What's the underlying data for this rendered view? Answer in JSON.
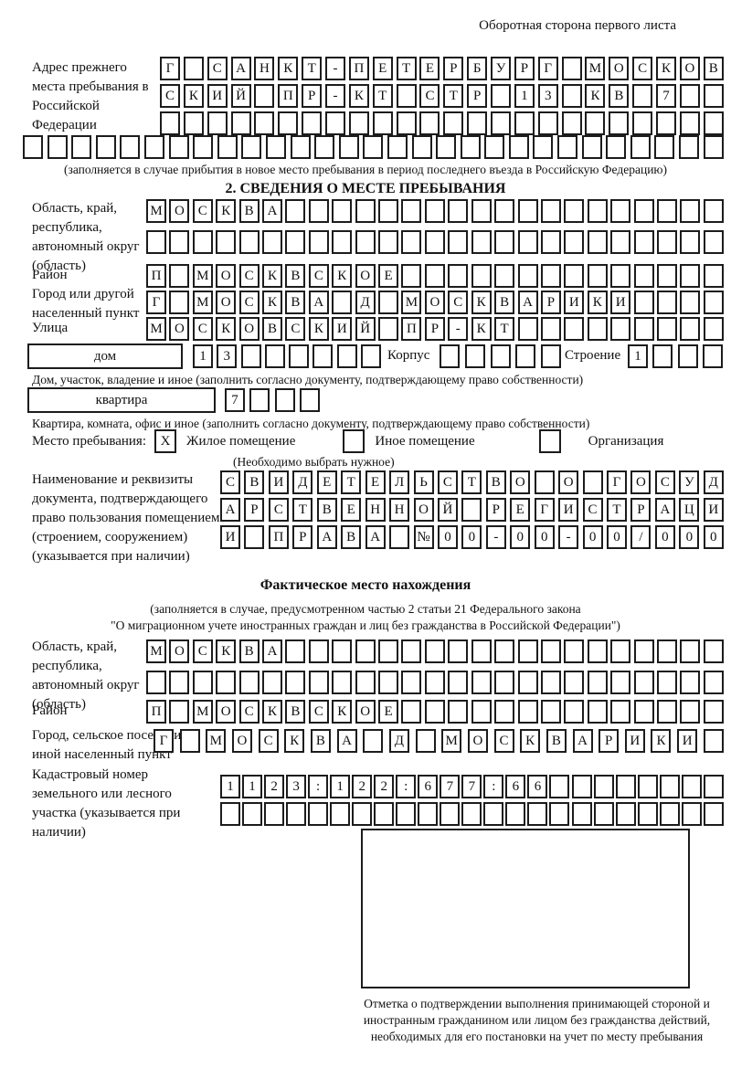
{
  "header": {
    "corner_note": "Оборотная сторона первого листа"
  },
  "prev_address": {
    "label": "Адрес прежнего места пребывания в Российской Федерации",
    "rows": [
      {
        "text": "Г САНКТ-ПЕТЕРБУРГ МОСКОВ",
        "count": 24
      },
      {
        "text": "СКИЙ ПР-КТ СТР 13 КВ 7",
        "count": 24
      },
      {
        "text": "",
        "count": 24
      },
      {
        "text": "",
        "count": 29
      }
    ],
    "note": "(заполняется в случае прибытия в новое место пребывания в период последнего въезда в Российскую Федерацию)"
  },
  "section2": {
    "title": "2. СВЕДЕНИЯ О МЕСТЕ ПРЕБЫВАНИЯ",
    "region": {
      "label": "Область, край, республика, автономный округ (область)",
      "rows": [
        {
          "text": "МОСКВА",
          "count": 25
        },
        {
          "text": "",
          "count": 25
        }
      ]
    },
    "district": {
      "label": "Район",
      "row": {
        "text": "П МОСКВСКОЕ",
        "count": 25
      }
    },
    "city": {
      "label": "Город или другой населенный пункт",
      "row": {
        "text": "Г МОСКВА Д МОСКВАРИКИ",
        "count": 25
      }
    },
    "street": {
      "label": "Улица",
      "row": {
        "text": "МОСКОВСКИЙ ПР-КТ",
        "count": 25
      }
    },
    "house": {
      "box_label": "дом",
      "cells": {
        "text": "13",
        "count": 8
      },
      "korpus_label": "Корпус",
      "korpus_cells": {
        "text": "",
        "count": 5
      },
      "stroenie_label": "Строение",
      "stroenie_cells": {
        "text": "1",
        "count": 4
      },
      "caption": "Дом, участок, владение и иное (заполнить согласно документу, подтверждающему право собственности)"
    },
    "apartment": {
      "box_label": "квартира",
      "cells": {
        "text": "7",
        "count": 4
      },
      "caption": "Квартира, комната, офис и иное (заполнить согласно документу, подтверждающему право собственности)"
    },
    "stay_type": {
      "label": "Место пребывания:",
      "options": [
        {
          "label": "Жилое помещение",
          "checked": "X"
        },
        {
          "label": "Иное помещение",
          "checked": ""
        },
        {
          "label": "Организация",
          "checked": ""
        }
      ],
      "hint": "(Необходимо выбрать нужное)"
    },
    "doc": {
      "label": "Наименование и реквизиты документа, подтверждающего право пользования помещением (строением, сооружением) (указывается при наличии)",
      "rows": [
        {
          "text": "СВИДЕТЕЛЬСТВО О ГОСУД",
          "count": 21
        },
        {
          "text": "АРСТВЕННОЙ РЕГИСТРАЦИ",
          "count": 21
        },
        {
          "text": "И ПРАВА №00-00-00/000",
          "count": 21
        }
      ]
    }
  },
  "actual_location": {
    "title": "Фактическое место нахождения",
    "note_line1": "(заполняется в случае, предусмотренном частью 2 статьи 21 Федерального закона",
    "note_line2": "\"О миграционном учете иностранных граждан и лиц без гражданства в Российской Федерации\")",
    "region": {
      "label": "Область, край, республика, автономный округ (область)",
      "rows": [
        {
          "text": "МОСКВА",
          "count": 25
        },
        {
          "text": "",
          "count": 25
        }
      ]
    },
    "district": {
      "label": "Район",
      "row": {
        "text": "П МОСКВСКОЕ",
        "count": 25
      }
    },
    "city": {
      "label": "Город, сельское поселение, иной населенный пункт",
      "row": {
        "text": "Г МОСКВА Д МОСКВАРИКИ",
        "count": 22
      }
    },
    "cadastral": {
      "label": "Кадастровый номер земельного или лесного участка (указывается при наличии)",
      "rows": [
        {
          "text": "1123:122:677:66",
          "count": 23
        },
        {
          "text": "",
          "count": 23
        }
      ]
    },
    "stamp_caption": "Отметка о подтверждении выполнения принимающей стороной и иностранным гражданином или лицом без гражданства действий, необходимых для его постановки на учет по месту пребывания"
  }
}
